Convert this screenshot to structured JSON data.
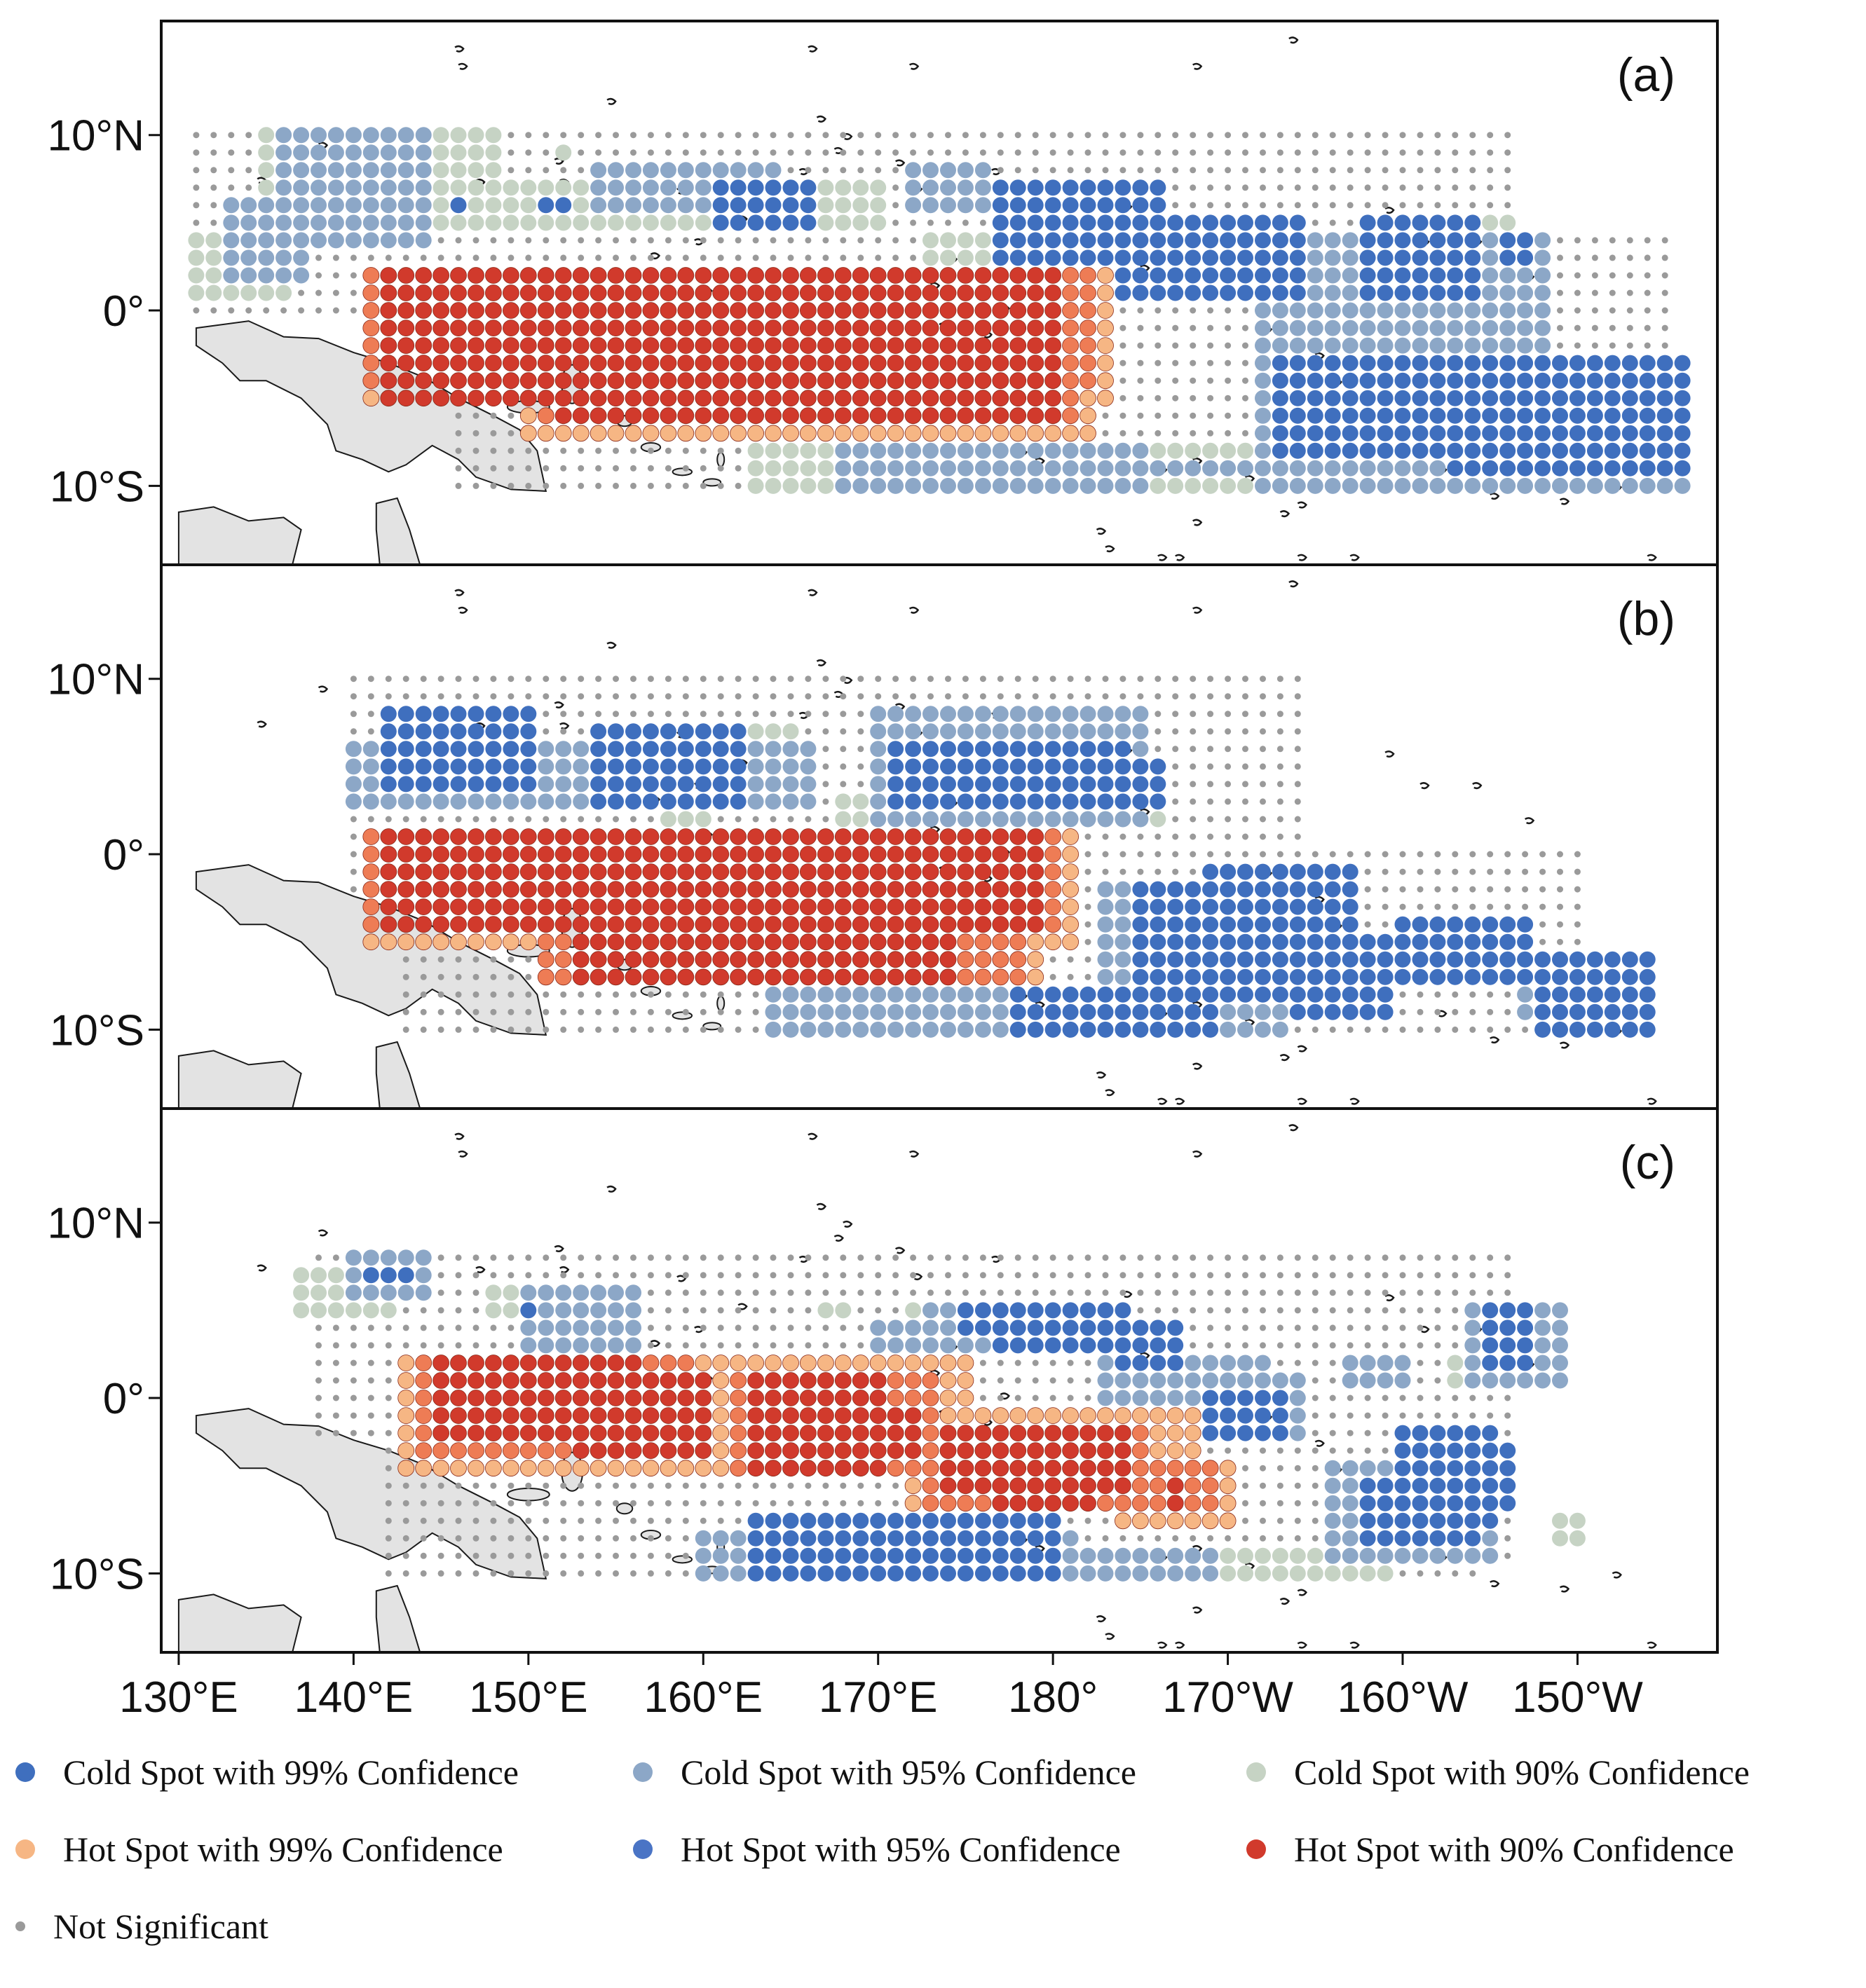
{
  "chart_data": {
    "type": "map-scatter",
    "panels": [
      {
        "id": "a",
        "label": "(a)"
      },
      {
        "id": "b",
        "label": "(b)"
      },
      {
        "id": "c",
        "label": "(c)"
      }
    ],
    "x_ticks": [
      "130°E",
      "140°E",
      "150°E",
      "160°E",
      "170°E",
      "180°",
      "170°W",
      "160°W",
      "150°W"
    ],
    "x_tick_values": [
      130,
      140,
      150,
      160,
      170,
      180,
      190,
      200,
      210
    ],
    "y_ticks": [
      "10°N",
      "0°",
      "10°S"
    ],
    "y_tick_values": [
      10,
      0,
      -10
    ],
    "xlim": [
      129,
      218
    ],
    "ylim": [
      -14.5,
      16.5
    ],
    "grid_step_deg": 1,
    "colors": {
      "cold99": "#3f6fbe",
      "cold95": "#8ca7c7",
      "cold90": "#c6d3c4",
      "hot99": "#f6b684",
      "hot95": "#ee7c55",
      "hot90": "#d13a2c",
      "ns": "#9a9a9a",
      "land": "#e3e3e3",
      "hot95_legend": "#4a74c5"
    },
    "legend": [
      {
        "key": "cold99",
        "label": "Cold Spot with 99% Confidence",
        "color": "#3f6fbe"
      },
      {
        "key": "cold95",
        "label": "Cold Spot with 95% Confidence",
        "color": "#8ca7c7"
      },
      {
        "key": "cold90",
        "label": "Cold Spot with 90% Confidence",
        "color": "#c6d3c4"
      },
      {
        "key": "hot99",
        "label": "Hot Spot with 99% Confidence",
        "color": "#f6b684"
      },
      {
        "key": "hot95",
        "label": "Hot Spot with 95% Confidence",
        "color": "#4a74c5"
      },
      {
        "key": "hot90",
        "label": "Hot Spot with 90% Confidence",
        "color": "#d13a2c"
      },
      {
        "key": "ns",
        "label": "Not Significant",
        "color": "#9a9a9a"
      }
    ]
  }
}
